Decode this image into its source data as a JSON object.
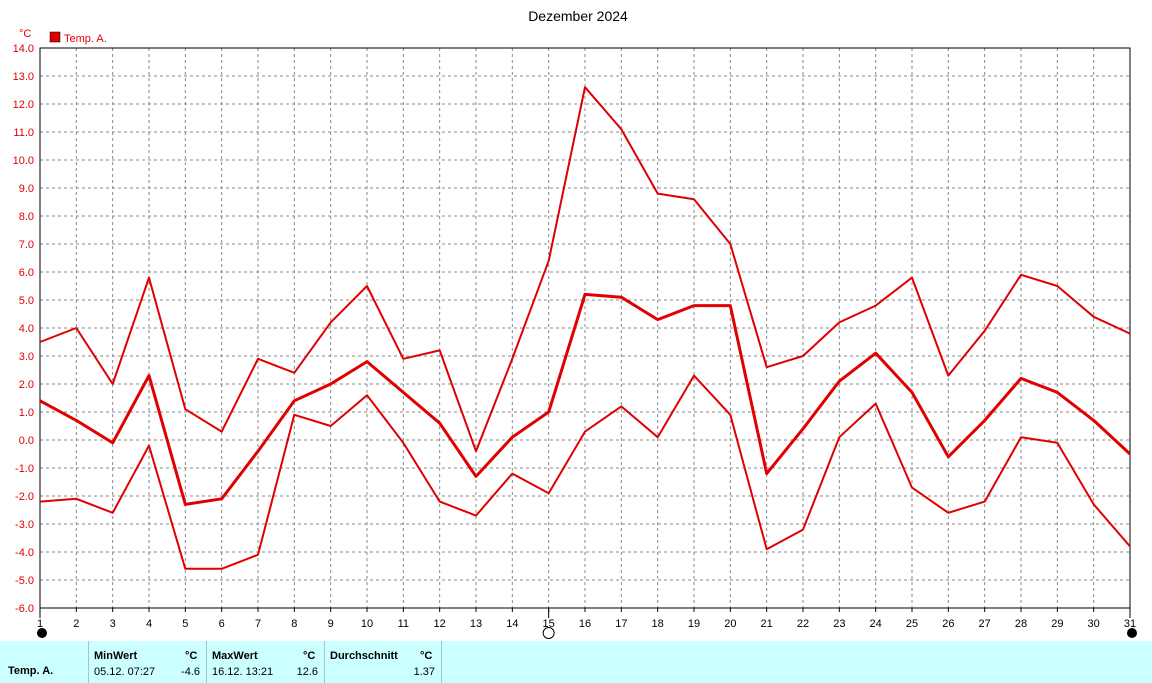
{
  "chart_data": {
    "type": "line",
    "title": "Dezember 2024",
    "ylabel": "°C",
    "ylim": [
      -6.0,
      14.0
    ],
    "ytick_step": 1.0,
    "x": [
      1,
      2,
      3,
      4,
      5,
      6,
      7,
      8,
      9,
      10,
      11,
      12,
      13,
      14,
      15,
      16,
      17,
      18,
      19,
      20,
      21,
      22,
      23,
      24,
      25,
      26,
      27,
      28,
      29,
      30,
      31
    ],
    "legend": [
      "Temp. A."
    ],
    "legend_position": "top-left",
    "grid": true,
    "series": [
      {
        "role": "max",
        "color": "#e00000",
        "values": [
          3.5,
          4.0,
          2.0,
          5.8,
          1.1,
          0.3,
          2.9,
          2.4,
          4.2,
          5.5,
          2.9,
          3.2,
          -0.4,
          2.9,
          6.4,
          12.6,
          11.1,
          8.8,
          8.6,
          7.0,
          2.6,
          3.0,
          4.2,
          4.8,
          5.8,
          2.3,
          3.9,
          5.9,
          5.5,
          4.4,
          3.8
        ]
      },
      {
        "role": "avg",
        "color": "#e00000",
        "values": [
          1.4,
          0.7,
          -0.1,
          2.3,
          -2.3,
          -2.1,
          -0.4,
          1.4,
          2.0,
          2.8,
          1.7,
          0.6,
          -1.3,
          0.1,
          1.0,
          5.2,
          5.1,
          4.3,
          4.8,
          4.8,
          -1.2,
          0.4,
          2.1,
          3.1,
          1.7,
          -0.6,
          0.7,
          2.2,
          1.7,
          0.7,
          -0.5
        ]
      },
      {
        "role": "min",
        "color": "#e00000",
        "values": [
          -2.2,
          -2.1,
          -2.6,
          -0.2,
          -4.6,
          -4.6,
          -4.1,
          0.9,
          0.5,
          1.6,
          -0.1,
          -2.2,
          -2.7,
          -1.2,
          -1.9,
          0.3,
          1.2,
          0.1,
          2.3,
          0.9,
          -3.9,
          -3.2,
          0.1,
          1.3,
          -1.7,
          -2.6,
          -2.2,
          0.1,
          -0.1,
          -2.3,
          -3.8
        ]
      }
    ],
    "moon_phases": [
      {
        "day": 1,
        "phase": "new"
      },
      {
        "day": 15,
        "phase": "full"
      },
      {
        "day": 31,
        "phase": "new"
      }
    ]
  },
  "footer": {
    "series_name": "Temp. A.",
    "min": {
      "label": "MinWert",
      "unit": "°C",
      "datetime": "05.12.  07:27",
      "value": "-4.6"
    },
    "max": {
      "label": "MaxWert",
      "unit": "°C",
      "datetime": "16.12.  13:21",
      "value": "12.6"
    },
    "avg": {
      "label": "Durchschnitt",
      "unit": "°C",
      "value": "1.37"
    }
  }
}
